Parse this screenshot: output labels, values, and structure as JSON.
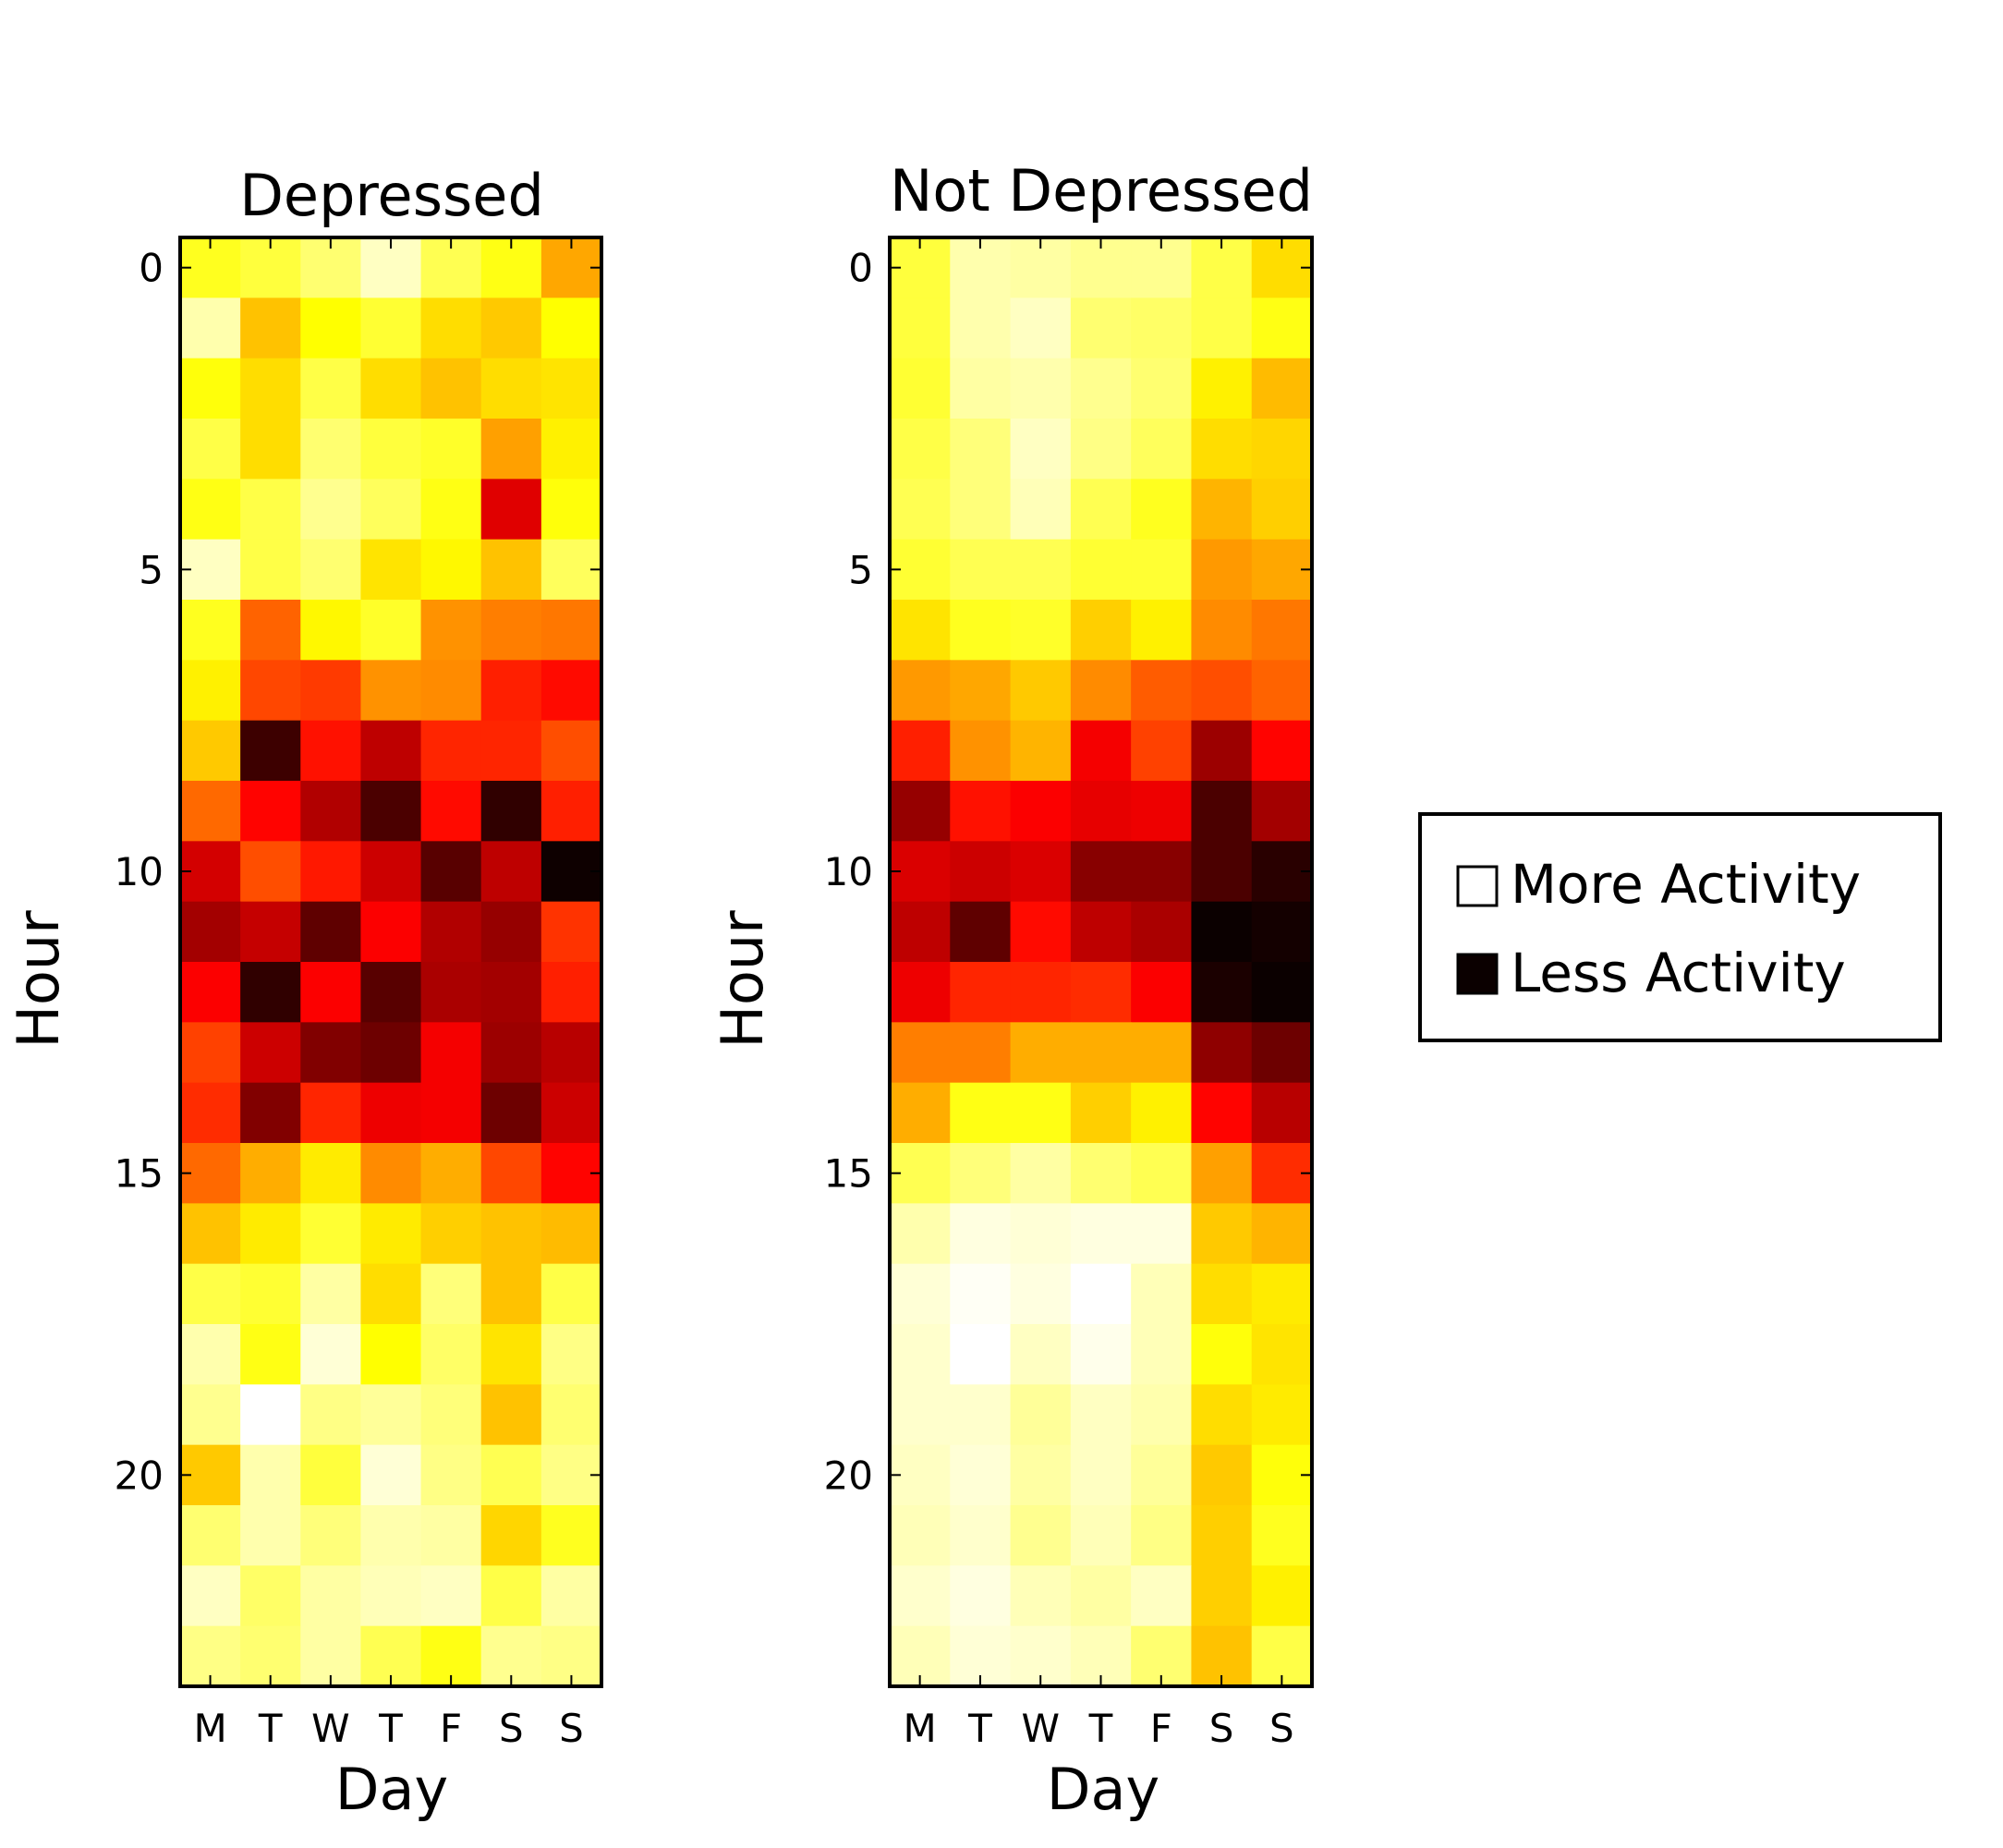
{
  "chart_data": [
    {
      "type": "heatmap",
      "title": "Depressed",
      "xlabel": "Day",
      "ylabel": "Hour",
      "x_categories": [
        "M",
        "T",
        "W",
        "T",
        "F",
        "S",
        "S"
      ],
      "y_ticks": [
        0,
        5,
        10,
        15,
        20
      ],
      "y_range": [
        0,
        23
      ],
      "colormap": "hot",
      "values": [
        [
          0.78,
          0.81,
          0.86,
          0.94,
          0.83,
          0.77,
          0.62
        ],
        [
          0.92,
          0.66,
          0.75,
          0.8,
          0.7,
          0.67,
          0.75
        ],
        [
          0.76,
          0.7,
          0.82,
          0.7,
          0.66,
          0.7,
          0.71
        ],
        [
          0.82,
          0.7,
          0.86,
          0.81,
          0.79,
          0.61,
          0.73
        ],
        [
          0.77,
          0.82,
          0.89,
          0.84,
          0.77,
          0.33,
          0.76
        ],
        [
          0.94,
          0.82,
          0.86,
          0.71,
          0.74,
          0.66,
          0.84
        ],
        [
          0.78,
          0.52,
          0.74,
          0.79,
          0.59,
          0.56,
          0.55
        ],
        [
          0.73,
          0.48,
          0.46,
          0.59,
          0.58,
          0.42,
          0.39
        ],
        [
          0.67,
          0.09,
          0.4,
          0.28,
          0.43,
          0.43,
          0.49
        ],
        [
          0.53,
          0.38,
          0.26,
          0.11,
          0.39,
          0.07,
          0.42
        ],
        [
          0.31,
          0.49,
          0.41,
          0.3,
          0.13,
          0.28,
          0.02
        ],
        [
          0.24,
          0.29,
          0.14,
          0.37,
          0.26,
          0.22,
          0.45
        ],
        [
          0.37,
          0.07,
          0.37,
          0.13,
          0.25,
          0.24,
          0.42
        ],
        [
          0.47,
          0.3,
          0.19,
          0.16,
          0.36,
          0.23,
          0.27
        ],
        [
          0.44,
          0.19,
          0.43,
          0.35,
          0.36,
          0.16,
          0.3
        ],
        [
          0.53,
          0.63,
          0.72,
          0.58,
          0.63,
          0.48,
          0.38
        ],
        [
          0.66,
          0.72,
          0.8,
          0.72,
          0.68,
          0.66,
          0.65
        ],
        [
          0.82,
          0.8,
          0.91,
          0.7,
          0.87,
          0.66,
          0.82
        ],
        [
          0.92,
          0.77,
          0.96,
          0.75,
          0.85,
          0.71,
          0.88
        ],
        [
          0.89,
          1.0,
          0.88,
          0.9,
          0.87,
          0.66,
          0.86
        ],
        [
          0.67,
          0.92,
          0.81,
          0.96,
          0.88,
          0.83,
          0.88
        ],
        [
          0.86,
          0.92,
          0.87,
          0.92,
          0.91,
          0.69,
          0.78
        ],
        [
          0.94,
          0.85,
          0.91,
          0.93,
          0.94,
          0.82,
          0.91
        ],
        [
          0.88,
          0.86,
          0.91,
          0.83,
          0.77,
          0.89,
          0.88
        ]
      ]
    },
    {
      "type": "heatmap",
      "title": "Not Depressed",
      "xlabel": "Day",
      "ylabel": "Hour",
      "x_categories": [
        "M",
        "T",
        "W",
        "T",
        "F",
        "S",
        "S"
      ],
      "y_ticks": [
        0,
        5,
        10,
        15,
        20
      ],
      "y_range": [
        0,
        23
      ],
      "colormap": "hot",
      "values": [
        [
          0.81,
          0.92,
          0.91,
          0.89,
          0.89,
          0.82,
          0.7
        ],
        [
          0.81,
          0.92,
          0.94,
          0.86,
          0.85,
          0.82,
          0.77
        ],
        [
          0.8,
          0.91,
          0.92,
          0.89,
          0.86,
          0.73,
          0.65
        ],
        [
          0.82,
          0.87,
          0.94,
          0.88,
          0.84,
          0.7,
          0.69
        ],
        [
          0.83,
          0.87,
          0.93,
          0.83,
          0.78,
          0.64,
          0.68
        ],
        [
          0.8,
          0.83,
          0.83,
          0.8,
          0.8,
          0.6,
          0.62
        ],
        [
          0.71,
          0.78,
          0.79,
          0.68,
          0.73,
          0.58,
          0.55
        ],
        [
          0.6,
          0.62,
          0.67,
          0.58,
          0.51,
          0.49,
          0.52
        ],
        [
          0.42,
          0.59,
          0.64,
          0.36,
          0.47,
          0.23,
          0.38
        ],
        [
          0.22,
          0.4,
          0.37,
          0.34,
          0.35,
          0.11,
          0.24
        ],
        [
          0.32,
          0.3,
          0.32,
          0.2,
          0.2,
          0.11,
          0.06
        ],
        [
          0.28,
          0.14,
          0.39,
          0.28,
          0.25,
          0.01,
          0.03
        ],
        [
          0.35,
          0.43,
          0.43,
          0.44,
          0.37,
          0.04,
          0.01
        ],
        [
          0.56,
          0.56,
          0.63,
          0.63,
          0.63,
          0.21,
          0.16
        ],
        [
          0.63,
          0.77,
          0.77,
          0.68,
          0.73,
          0.38,
          0.27
        ],
        [
          0.83,
          0.87,
          0.91,
          0.86,
          0.83,
          0.61,
          0.44
        ],
        [
          0.92,
          0.97,
          0.96,
          0.97,
          0.97,
          0.67,
          0.64
        ],
        [
          0.96,
          0.99,
          0.97,
          1.0,
          0.93,
          0.7,
          0.72
        ],
        [
          0.95,
          1.0,
          0.94,
          0.98,
          0.93,
          0.76,
          0.71
        ],
        [
          0.95,
          0.95,
          0.9,
          0.94,
          0.92,
          0.7,
          0.72
        ],
        [
          0.94,
          0.96,
          0.91,
          0.94,
          0.9,
          0.67,
          0.76
        ],
        [
          0.93,
          0.95,
          0.89,
          0.93,
          0.88,
          0.68,
          0.78
        ],
        [
          0.95,
          0.97,
          0.93,
          0.91,
          0.94,
          0.68,
          0.73
        ],
        [
          0.93,
          0.96,
          0.95,
          0.93,
          0.86,
          0.66,
          0.82
        ]
      ]
    }
  ],
  "legend": {
    "placement": "right",
    "items": [
      {
        "label": "More Activity",
        "color": "#ffffff"
      },
      {
        "label": "Less Activity",
        "color": "#0b0000"
      }
    ]
  }
}
